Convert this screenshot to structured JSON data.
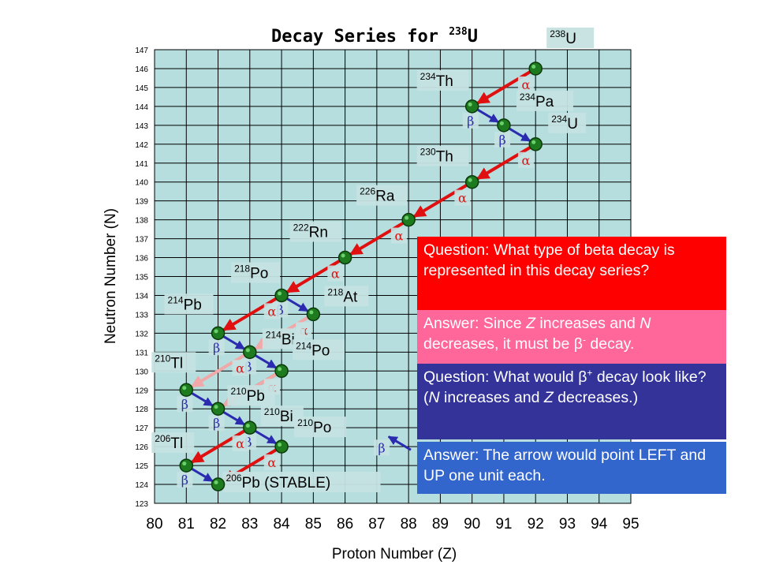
{
  "title": {
    "main": "Decay Series for ",
    "sup": "238",
    "element": "U"
  },
  "colors": {
    "grid_bg": "#b6dede",
    "grid_line": "#000000",
    "alpha_arrow": "#e01010",
    "beta_arrow": "#2b2bb0",
    "alpha_ghost": "#f0a8a8",
    "beta_ghost": "#a8a8e8",
    "node_fill": "#1e7a1e",
    "node_edge": "#0a3a0a",
    "label_bg": "#c6e2e2",
    "q1_bg": "#ff0000",
    "a1_bg": "#ff6699",
    "q2_bg": "#333399",
    "a2_bg": "#3366cc"
  },
  "chart_data": {
    "type": "scatter",
    "xlabel": "Proton Number (Z)",
    "ylabel": "Neutron Number (N)",
    "xlim": [
      80,
      95
    ],
    "ylim": [
      123,
      147
    ],
    "x_ticks": [
      80,
      81,
      82,
      83,
      84,
      85,
      86,
      87,
      88,
      89,
      90,
      91,
      92,
      93,
      94,
      95
    ],
    "y_ticks": [
      123,
      124,
      125,
      126,
      127,
      128,
      129,
      130,
      131,
      132,
      133,
      134,
      135,
      136,
      137,
      138,
      139,
      140,
      141,
      142,
      143,
      144,
      145,
      146,
      147
    ],
    "grid": true,
    "nuclides": [
      {
        "mass": "238",
        "symbol": "U",
        "z": 92,
        "n": 146
      },
      {
        "mass": "234",
        "symbol": "Th",
        "z": 90,
        "n": 144
      },
      {
        "mass": "234",
        "symbol": "Pa",
        "z": 91,
        "n": 143
      },
      {
        "mass": "234",
        "symbol": "U",
        "z": 92,
        "n": 142
      },
      {
        "mass": "230",
        "symbol": "Th",
        "z": 90,
        "n": 140
      },
      {
        "mass": "226",
        "symbol": "Ra",
        "z": 88,
        "n": 138
      },
      {
        "mass": "222",
        "symbol": "Rn",
        "z": 86,
        "n": 136
      },
      {
        "mass": "218",
        "symbol": "Po",
        "z": 84,
        "n": 134
      },
      {
        "mass": "218",
        "symbol": "At",
        "z": 85,
        "n": 133
      },
      {
        "mass": "214",
        "symbol": "Pb",
        "z": 82,
        "n": 132
      },
      {
        "mass": "214",
        "symbol": "Bi",
        "z": 83,
        "n": 131
      },
      {
        "mass": "214",
        "symbol": "Po",
        "z": 84,
        "n": 130
      },
      {
        "mass": "210",
        "symbol": "Tl",
        "z": 81,
        "n": 129
      },
      {
        "mass": "210",
        "symbol": "Pb",
        "z": 82,
        "n": 128
      },
      {
        "mass": "210",
        "symbol": "Bi",
        "z": 83,
        "n": 127
      },
      {
        "mass": "210",
        "symbol": "Po",
        "z": 84,
        "n": 126
      },
      {
        "mass": "206",
        "symbol": "Tl",
        "z": 81,
        "n": 125
      },
      {
        "mass": "206",
        "symbol": "Pb (STABLE)",
        "z": 82,
        "n": 124
      }
    ],
    "decays": [
      {
        "type": "alpha",
        "from": [
          92,
          146
        ],
        "to": [
          90,
          144
        ]
      },
      {
        "type": "beta",
        "from": [
          90,
          144
        ],
        "to": [
          91,
          143
        ]
      },
      {
        "type": "beta",
        "from": [
          91,
          143
        ],
        "to": [
          92,
          142
        ]
      },
      {
        "type": "alpha",
        "from": [
          92,
          142
        ],
        "to": [
          90,
          140
        ]
      },
      {
        "type": "alpha",
        "from": [
          90,
          140
        ],
        "to": [
          88,
          138
        ]
      },
      {
        "type": "alpha",
        "from": [
          88,
          138
        ],
        "to": [
          86,
          136
        ]
      },
      {
        "type": "alpha",
        "from": [
          86,
          136
        ],
        "to": [
          84,
          134
        ]
      },
      {
        "type": "beta",
        "from": [
          84,
          134
        ],
        "to": [
          85,
          133
        ]
      },
      {
        "type": "alpha",
        "from": [
          84,
          134
        ],
        "to": [
          82,
          132
        ]
      },
      {
        "type": "alpha",
        "from": [
          85,
          133
        ],
        "to": [
          83,
          131
        ],
        "faded": true
      },
      {
        "type": "beta",
        "from": [
          82,
          132
        ],
        "to": [
          83,
          131
        ]
      },
      {
        "type": "beta",
        "from": [
          83,
          131
        ],
        "to": [
          84,
          130
        ]
      },
      {
        "type": "alpha",
        "from": [
          83,
          131
        ],
        "to": [
          81,
          129
        ],
        "faded": true
      },
      {
        "type": "alpha",
        "from": [
          84,
          130
        ],
        "to": [
          82,
          128
        ]
      },
      {
        "type": "beta",
        "from": [
          81,
          129
        ],
        "to": [
          82,
          128
        ]
      },
      {
        "type": "beta",
        "from": [
          82,
          128
        ],
        "to": [
          83,
          127
        ]
      },
      {
        "type": "alpha",
        "from": [
          84,
          130
        ],
        "to": [
          82,
          128
        ],
        "faded": true
      },
      {
        "type": "beta",
        "from": [
          83,
          127
        ],
        "to": [
          84,
          126
        ]
      },
      {
        "type": "alpha",
        "from": [
          83,
          127
        ],
        "to": [
          81,
          125
        ]
      },
      {
        "type": "alpha",
        "from": [
          84,
          126
        ],
        "to": [
          82,
          124
        ]
      },
      {
        "type": "beta",
        "from": [
          81,
          125
        ],
        "to": [
          82,
          124
        ]
      },
      {
        "type": "beta_plus_example",
        "from": [
          88.2,
          125.7
        ],
        "to": [
          87.2,
          126.7
        ]
      }
    ],
    "symbols": {
      "alpha": "α",
      "beta": "β",
      "beta_plus": "β"
    }
  },
  "panels": {
    "q1": "Question:  What type of beta decay is represented in this decay series?",
    "a1_pre": "Answer:  Since ",
    "a1_z": "Z",
    "a1_mid": " increases and ",
    "a1_n": "N",
    "a1_post": " decreases, it must be ",
    "a1_beta": "β",
    "a1_sup": "-",
    "a1_end": " decay.",
    "q2_pre": "Question:  What would ",
    "q2_beta": "β",
    "q2_sup": "+",
    "q2_mid": " decay look like?  (",
    "q2_n": "N",
    "q2_mid2": " increases and ",
    "q2_z": "Z",
    "q2_end": " decreases.)",
    "a2": "Answer:  The arrow would point LEFT and UP one unit each."
  }
}
